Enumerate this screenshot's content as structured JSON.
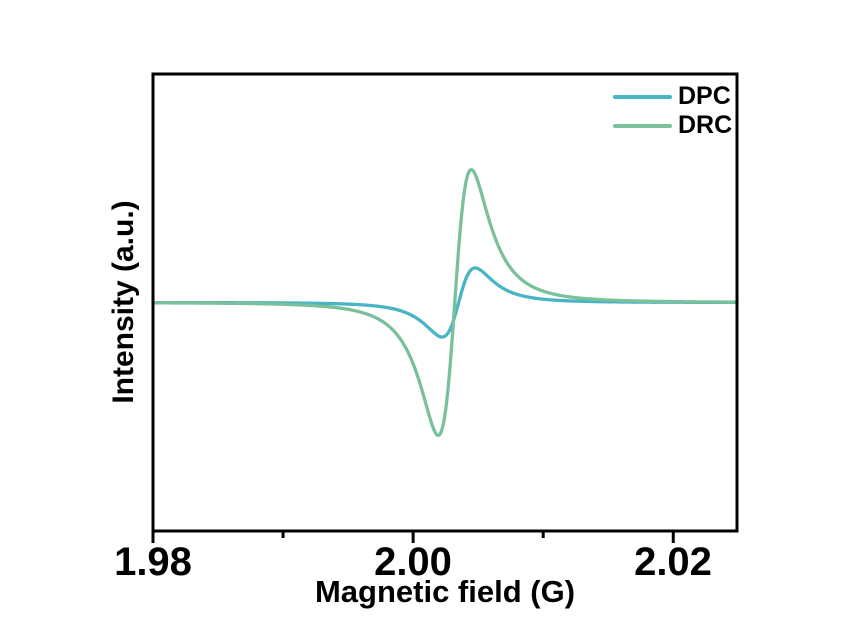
{
  "figure": {
    "background": "#ffffff",
    "plot_border_color": "#000000"
  },
  "axes": {
    "xlabel": "Magnetic field (G)",
    "ylabel": "Intensity (a.u.)",
    "x_tick_labels": [
      "1.98",
      "2.00",
      "2.02"
    ]
  },
  "legend": {
    "entries": [
      {
        "label": "DPC",
        "color": "#49b4c6"
      },
      {
        "label": "DRC",
        "color": "#7ac09a"
      }
    ]
  },
  "chart_data": {
    "type": "line",
    "title": "",
    "xlabel": "Magnetic field (G)",
    "ylabel": "Intensity (a.u.)",
    "xlim": [
      1.98,
      2.0249
    ],
    "ylim": [
      -1.72,
      1.72
    ],
    "x_major_ticks": [
      1.98,
      2.0,
      2.02
    ],
    "x_minor_ticks": [
      1.99,
      2.01
    ],
    "y_ticks": [],
    "grid": false,
    "legend_position": "upper-right",
    "baseline": 0,
    "series": [
      {
        "name": "DPC",
        "color": "#49b4c6",
        "model": "lorentzian_first_derivative",
        "center": 2.0035,
        "width": 0.0022,
        "amplitude": 0.26,
        "min_point": {
          "x": 2.0022,
          "y": -0.26
        },
        "max_point": {
          "x": 2.0047,
          "y": 0.26
        },
        "zero_crossing": 2.0035
      },
      {
        "name": "DRC",
        "color": "#7ac09a",
        "model": "lorentzian_first_derivative",
        "center": 2.0032,
        "width": 0.0022,
        "amplitude": 1.0,
        "min_point": {
          "x": 2.0019,
          "y": -1.0
        },
        "max_point": {
          "x": 2.0045,
          "y": 1.0
        },
        "zero_crossing": 2.0032
      }
    ]
  }
}
